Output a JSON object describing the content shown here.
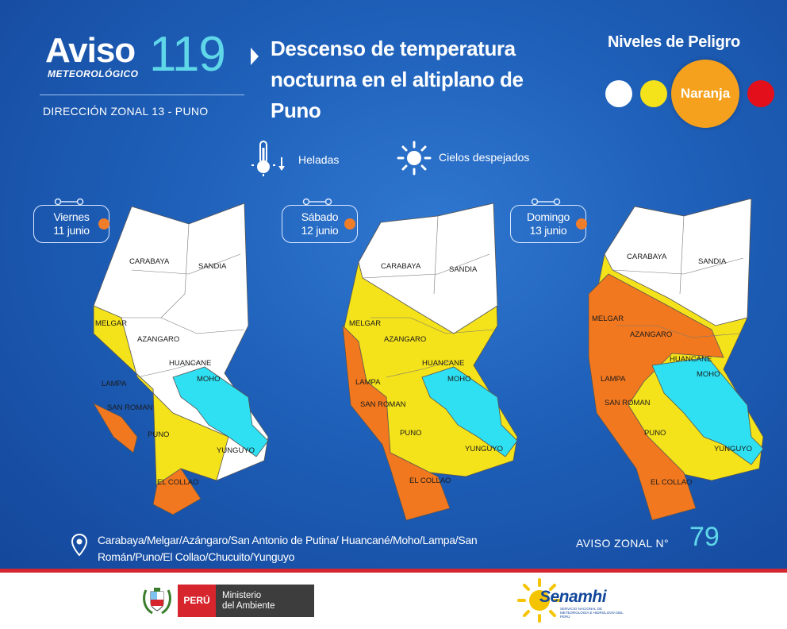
{
  "header": {
    "logo_aviso": "Aviso",
    "logo_meteo": "METEOROLÓGICO",
    "logo_number": "119",
    "direccion": "DIRECCIÓN ZONAL 13 - PUNO",
    "title_line1": "Descenso de temperatura",
    "title_line2": "nocturna  en el altiplano de",
    "title_line3": "Puno"
  },
  "levels": {
    "title": "Niveles de Peligro",
    "items": [
      {
        "color": "#ffffff"
      },
      {
        "color": "#f4e21a"
      },
      {
        "label": "Naranja",
        "color": "#f6a11d",
        "active": true
      },
      {
        "color": "#e30f1a"
      }
    ]
  },
  "legend": {
    "heladas": "Heladas",
    "cielos": "Cielos despejados",
    "heladas_icon": "thermometer-down-icon",
    "cielos_icon": "sun-icon"
  },
  "colors": {
    "white": "#ffffff",
    "yellow": "#f4e21a",
    "orange": "#f2781f",
    "lake": "#2fe0f2"
  },
  "maps": [
    {
      "day": "Viernes",
      "date": "11 junio"
    },
    {
      "day": "Sábado",
      "date": "12 junio"
    },
    {
      "day": "Domingo",
      "date": "13 junio"
    }
  ],
  "provinces": {
    "carabaya": "CARABAYA",
    "sandia": "SANDIA",
    "melgar": "MELGAR",
    "azangaro": "AZANGARO",
    "huancane": "HUANCANE",
    "moho": "MOHO",
    "lampa": "LAMPA",
    "san_roman": "SAN ROMAN",
    "puno": "PUNO",
    "yunguyo": "YUNGUYO",
    "el_collao": "EL COLLAO"
  },
  "footer": {
    "areas_line1": "Carabaya/Melgar/Azángaro/San Antonio de Putina/ Huancané/Moho/Lampa/San",
    "areas_line2": "Román/Puno/El Collao/Chucuito/Yunguyo",
    "aviso_zonal_label": "AVISO ZONAL N°",
    "aviso_zonal_number": "79",
    "peru": "PERÚ",
    "ministerio_line1": "Ministerio",
    "ministerio_line2": "del Ambiente",
    "senamhi": "Senamhi",
    "senamhi_sub": "SERVICIO NACIONAL DE METEOROLOGÍA E HIDROLOGÍA DEL PERÚ"
  }
}
